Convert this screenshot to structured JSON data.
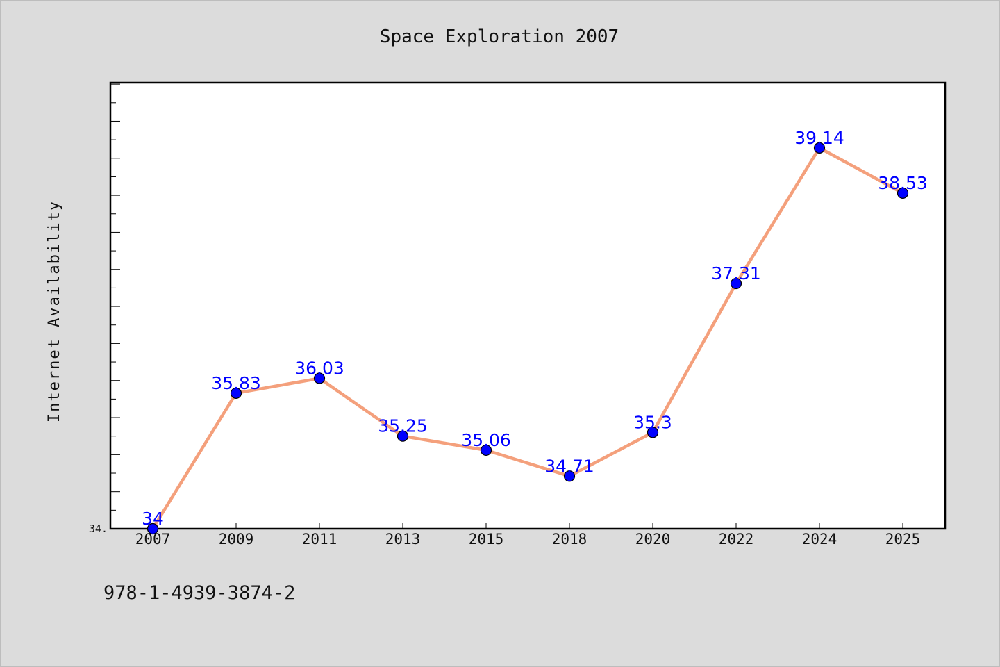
{
  "chart_data": {
    "type": "line",
    "title": "Space Exploration 2007",
    "xlabel": "",
    "ylabel": "Internet Availability",
    "categories": [
      "2007",
      "2009",
      "2011",
      "2013",
      "2015",
      "2018",
      "2020",
      "2022",
      "2024",
      "2025"
    ],
    "values": [
      34,
      35.83,
      36.03,
      35.25,
      35.06,
      34.71,
      35.3,
      37.31,
      39.14,
      38.53
    ],
    "data_labels": [
      "34",
      "35.83",
      "36.03",
      "35.25",
      "35.06",
      "34.71",
      "35.3",
      "37.31",
      "39.14",
      "38.53"
    ],
    "y_axis_min_label": "34.",
    "ylim": [
      34,
      40.02
    ],
    "grid": false,
    "legend": "none",
    "colors": {
      "line": "#f4a07c",
      "marker": "#0000ff",
      "label": "#0000ff",
      "background": "#dcdcdc",
      "plot_background": "#ffffff"
    }
  },
  "footer": {
    "isbn": "978-1-4939-3874-2"
  }
}
